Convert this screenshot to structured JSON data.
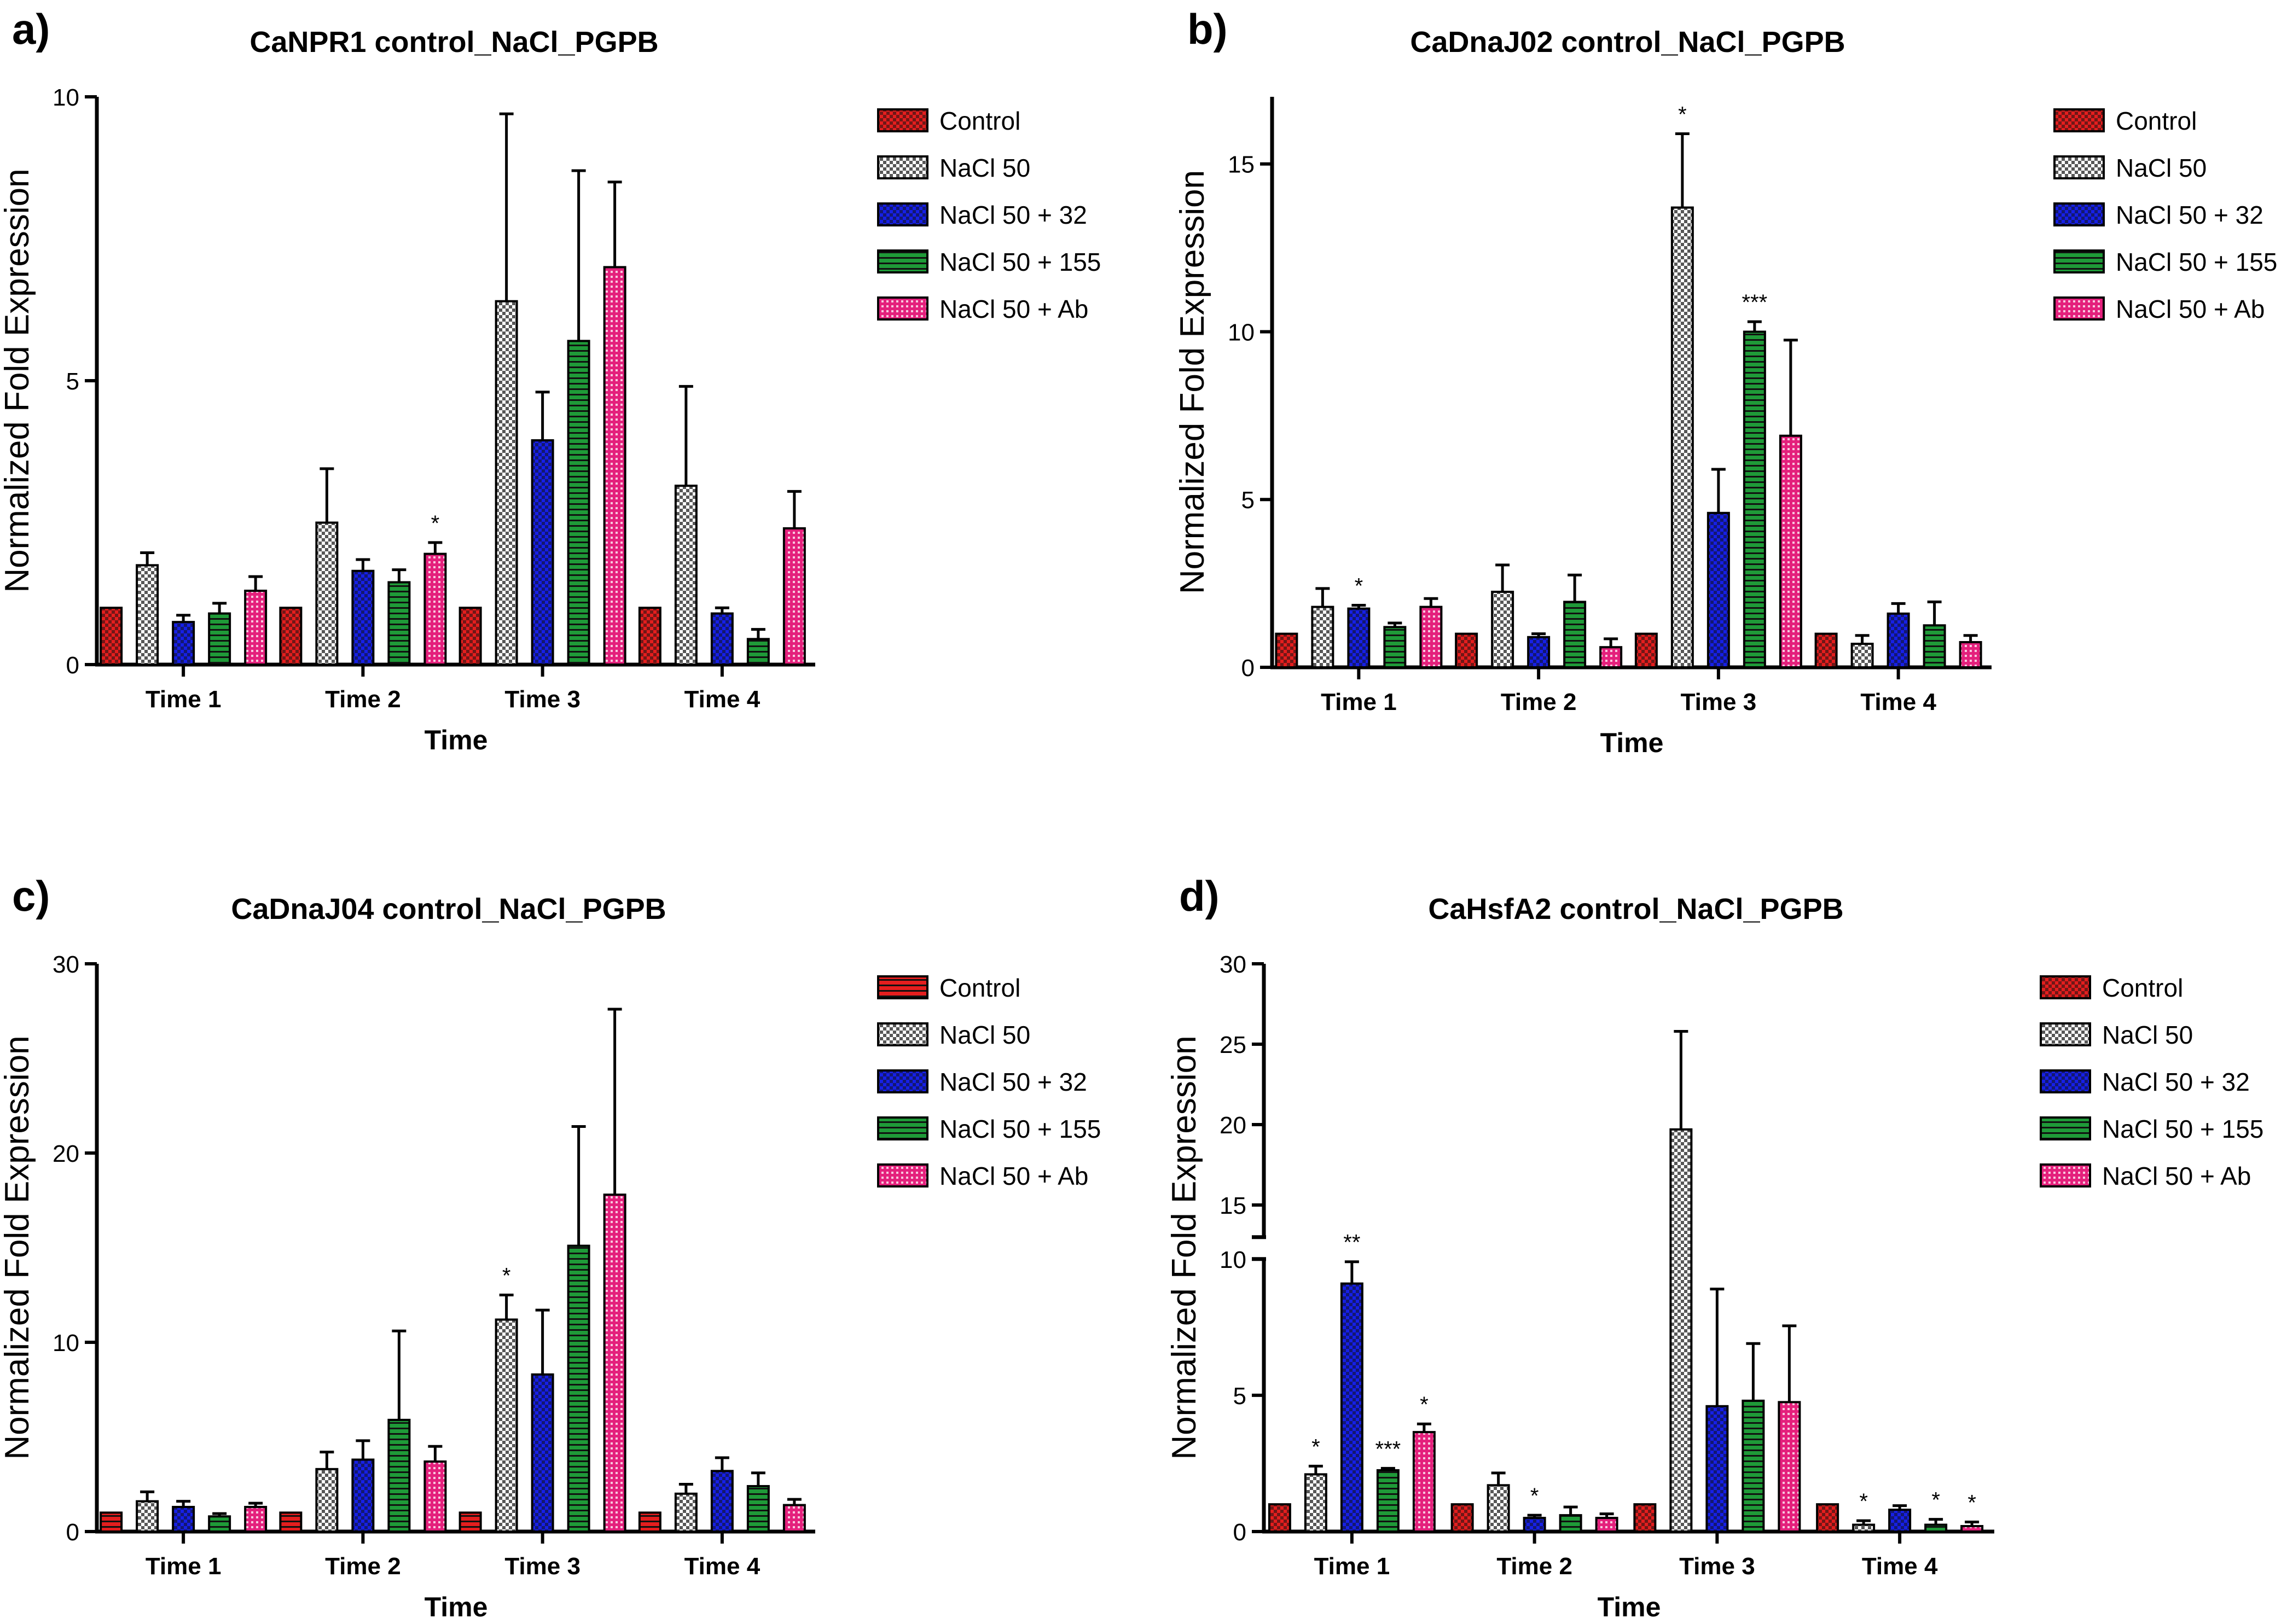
{
  "chart_data": [
    {
      "type": "bar",
      "panel_label": "a)",
      "title": "CaNPR1 control_NaCl_PGPB",
      "xlabel": "Time",
      "ylabel": "Normalized Fold Expression",
      "ylim": [
        0,
        10
      ],
      "yticks": [
        "0",
        "5",
        "10"
      ],
      "categories": [
        "Time 1",
        "Time 2",
        "Time 3",
        "Time 4"
      ],
      "legend_position": "right",
      "series": [
        {
          "name": "Control",
          "color": "#e41e1e",
          "pattern": "check",
          "values": [
            1,
            1,
            1,
            1
          ],
          "errors": [
            0,
            0,
            0,
            0
          ],
          "sig": [
            "",
            "",
            "",
            ""
          ]
        },
        {
          "name": "NaCl 50",
          "color": "#ffffff",
          "pattern": "check",
          "values": [
            1.75,
            2.5,
            6.4,
            3.15
          ],
          "errors": [
            0.22,
            0.95,
            3.3,
            1.75
          ],
          "sig": [
            "",
            "",
            "",
            ""
          ]
        },
        {
          "name": "NaCl 50 + 32",
          "color": "#1620e6",
          "pattern": "check",
          "values": [
            0.75,
            1.65,
            3.95,
            0.9
          ],
          "errors": [
            0.12,
            0.2,
            0.85,
            0.1
          ],
          "sig": [
            "",
            "",
            "",
            ""
          ]
        },
        {
          "name": "NaCl 50 + 155",
          "color": "#1f9a38",
          "pattern": "hlines",
          "values": [
            0.9,
            1.45,
            5.7,
            0.45
          ],
          "errors": [
            0.18,
            0.22,
            3.0,
            0.17
          ],
          "sig": [
            "",
            "",
            "",
            ""
          ]
        },
        {
          "name": "NaCl 50 + Ab",
          "color": "#e4207c",
          "pattern": "dots",
          "values": [
            1.3,
            1.95,
            7.0,
            2.4
          ],
          "errors": [
            0.25,
            0.2,
            1.5,
            0.65
          ],
          "sig": [
            "",
            "*",
            "",
            ""
          ]
        }
      ]
    },
    {
      "type": "bar",
      "panel_label": "b)",
      "title": "CaDnaJ02 control_NaCl_PGPB",
      "xlabel": "Time",
      "ylabel": "Normalized Fold Expression",
      "ylim": [
        0,
        17
      ],
      "yticks": [
        "0",
        "5",
        "10",
        "15"
      ],
      "categories": [
        "Time 1",
        "Time 2",
        "Time 3",
        "Time 4"
      ],
      "legend_position": "right",
      "series": [
        {
          "name": "Control",
          "color": "#e41e1e",
          "pattern": "check",
          "values": [
            1,
            1,
            1,
            1
          ],
          "errors": [
            0,
            0,
            0,
            0
          ],
          "sig": [
            "",
            "",
            "",
            ""
          ]
        },
        {
          "name": "NaCl 50",
          "color": "#ffffff",
          "pattern": "check",
          "values": [
            1.8,
            2.25,
            13.7,
            0.7
          ],
          "errors": [
            0.55,
            0.8,
            2.2,
            0.25
          ],
          "sig": [
            "",
            "",
            "*",
            ""
          ]
        },
        {
          "name": "NaCl 50 + 32",
          "color": "#1620e6",
          "pattern": "check",
          "values": [
            1.75,
            0.9,
            4.6,
            1.6
          ],
          "errors": [
            0.1,
            0.1,
            1.3,
            0.3
          ],
          "sig": [
            "*",
            "",
            "",
            ""
          ]
        },
        {
          "name": "NaCl 50 + 155",
          "color": "#1f9a38",
          "pattern": "hlines",
          "values": [
            1.2,
            1.95,
            10.0,
            1.25
          ],
          "errors": [
            0.12,
            0.8,
            0.3,
            0.7
          ],
          "sig": [
            "",
            "",
            "***",
            ""
          ]
        },
        {
          "name": "NaCl 50 + Ab",
          "color": "#e4207c",
          "pattern": "dots",
          "values": [
            1.8,
            0.6,
            6.9,
            0.75
          ],
          "errors": [
            0.25,
            0.25,
            2.85,
            0.2
          ],
          "sig": [
            "",
            "",
            "",
            ""
          ]
        }
      ]
    },
    {
      "type": "bar",
      "panel_label": "c)",
      "title": "CaDnaJ04 control_NaCl_PGPB",
      "xlabel": "Time",
      "ylabel": "Normalized Fold Expression",
      "ylim": [
        0,
        30
      ],
      "yticks": [
        "0",
        "10",
        "20",
        "30"
      ],
      "categories": [
        "Time 1",
        "Time 2",
        "Time 3",
        "Time 4"
      ],
      "legend_position": "right",
      "series": [
        {
          "name": "Control",
          "color": "#e41e1e",
          "pattern": "hlines",
          "values": [
            1,
            1,
            1,
            1
          ],
          "errors": [
            0,
            0,
            0,
            0
          ],
          "sig": [
            "",
            "",
            "",
            ""
          ]
        },
        {
          "name": "NaCl 50",
          "color": "#ffffff",
          "pattern": "check",
          "values": [
            1.6,
            3.3,
            11.2,
            2.0
          ],
          "errors": [
            0.5,
            0.9,
            1.3,
            0.5
          ],
          "sig": [
            "",
            "",
            "*",
            ""
          ]
        },
        {
          "name": "NaCl 50 + 32",
          "color": "#1620e6",
          "pattern": "check",
          "values": [
            1.3,
            3.8,
            8.3,
            3.2
          ],
          "errors": [
            0.3,
            1.0,
            3.4,
            0.7
          ],
          "sig": [
            "",
            "",
            "",
            ""
          ]
        },
        {
          "name": "NaCl 50 + 155",
          "color": "#1f9a38",
          "pattern": "hlines",
          "values": [
            0.8,
            5.9,
            15.1,
            2.4
          ],
          "errors": [
            0.15,
            4.7,
            6.3,
            0.7
          ],
          "sig": [
            "",
            "",
            "",
            ""
          ]
        },
        {
          "name": "NaCl 50 + Ab",
          "color": "#e4207c",
          "pattern": "dots",
          "values": [
            1.3,
            3.7,
            17.8,
            1.4
          ],
          "errors": [
            0.2,
            0.8,
            9.8,
            0.3
          ],
          "sig": [
            "",
            "",
            "",
            ""
          ]
        }
      ]
    },
    {
      "type": "bar",
      "panel_label": "d)",
      "title": "CaHsfA2 control_NaCl_PGPB",
      "xlabel": "Time",
      "ylabel": "Normalized Fold Expression",
      "ylim": [
        0,
        30
      ],
      "axis_break": [
        10,
        13
      ],
      "yticks": [
        "0",
        "5",
        "10",
        "15",
        "20",
        "25",
        "30"
      ],
      "categories": [
        "Time 1",
        "Time 2",
        "Time 3",
        "Time 4"
      ],
      "legend_position": "right",
      "series": [
        {
          "name": "Control",
          "color": "#e41e1e",
          "pattern": "check",
          "values": [
            1,
            1,
            1,
            1
          ],
          "errors": [
            0,
            0,
            0,
            0
          ],
          "sig": [
            "",
            "",
            "",
            ""
          ]
        },
        {
          "name": "NaCl 50",
          "color": "#ffffff",
          "pattern": "check",
          "values": [
            2.1,
            1.7,
            19.7,
            0.25
          ],
          "errors": [
            0.3,
            0.45,
            6.1,
            0.15
          ],
          "sig": [
            "*",
            "",
            "",
            "*"
          ]
        },
        {
          "name": "NaCl 50 + 32",
          "color": "#1620e6",
          "pattern": "check",
          "values": [
            9.1,
            0.5,
            4.6,
            0.8
          ],
          "errors": [
            0.8,
            0.1,
            4.3,
            0.15
          ],
          "sig": [
            "**",
            "*",
            "",
            ""
          ]
        },
        {
          "name": "NaCl 50 + 155",
          "color": "#1f9a38",
          "pattern": "hlines",
          "values": [
            2.25,
            0.6,
            4.8,
            0.25
          ],
          "errors": [
            0.07,
            0.3,
            2.1,
            0.2
          ],
          "sig": [
            "***",
            "",
            "",
            "*"
          ]
        },
        {
          "name": "NaCl 50 + Ab",
          "color": "#e4207c",
          "pattern": "dots",
          "values": [
            3.65,
            0.5,
            4.75,
            0.2
          ],
          "errors": [
            0.3,
            0.15,
            2.8,
            0.15
          ],
          "sig": [
            "*",
            "",
            "",
            "*"
          ]
        }
      ]
    }
  ]
}
